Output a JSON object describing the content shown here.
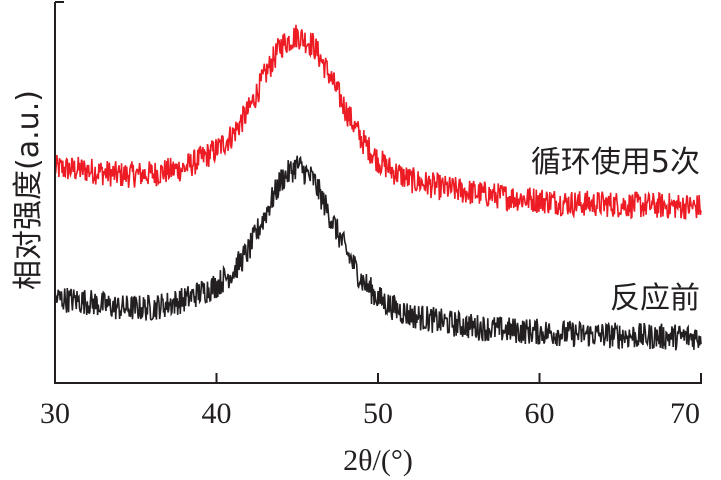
{
  "chart_data": {
    "type": "line",
    "title": "",
    "xlabel": "2θ/(°)",
    "ylabel": "相对强度(a.u.)",
    "xlim": [
      30,
      70
    ],
    "ylim": [
      0,
      100
    ],
    "xticks": [
      "30",
      "40",
      "50",
      "60",
      "70"
    ],
    "grid": false,
    "legend": "inline-labels-right",
    "x": [
      30,
      32,
      34,
      36,
      38,
      40,
      41,
      42,
      43,
      44,
      45,
      46,
      47,
      48,
      49,
      50,
      51,
      52,
      54,
      56,
      58,
      60,
      62,
      64,
      66,
      68,
      70
    ],
    "series": [
      {
        "name": "循环使用5次",
        "color": "#ed1c24",
        "values": [
          56.4,
          55.9,
          54.6,
          54.9,
          56.4,
          61.2,
          65.1,
          71.7,
          80.8,
          88.7,
          91.3,
          88.7,
          80.8,
          71.7,
          63.8,
          58.5,
          55.4,
          53.3,
          51.2,
          49.9,
          48.8,
          48.0,
          47.2,
          47.0,
          46.7,
          46.5,
          46.2
        ]
      },
      {
        "name": "反应前",
        "color": "#231f20",
        "values": [
          22.3,
          21.3,
          19.7,
          19.7,
          21.8,
          25.7,
          29.1,
          34.9,
          44.1,
          53.3,
          57.2,
          53.3,
          44.1,
          34.9,
          27.0,
          22.3,
          19.7,
          17.8,
          16.0,
          14.7,
          13.9,
          13.4,
          12.9,
          12.6,
          12.3,
          12.1,
          12.1
        ]
      }
    ]
  }
}
